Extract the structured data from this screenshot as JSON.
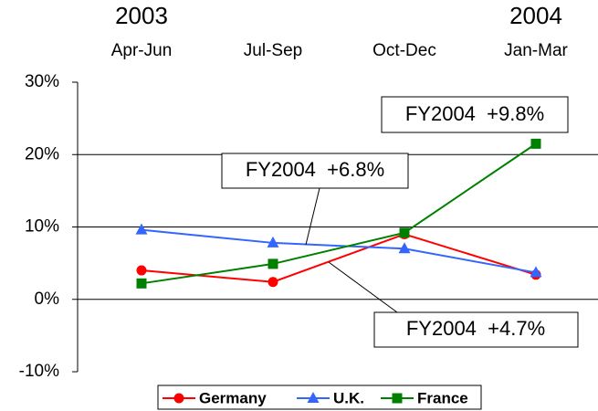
{
  "chart_data": {
    "type": "line",
    "categories": [
      "Apr-Jun",
      "Jul-Sep",
      "Oct-Dec",
      "Jan-Mar"
    ],
    "years": [
      "2003",
      null,
      null,
      "2004"
    ],
    "series": [
      {
        "name": "Germany",
        "color": "#ff0000",
        "marker": "circle",
        "values": [
          4.0,
          2.4,
          9.0,
          3.4
        ]
      },
      {
        "name": "U.K.",
        "color": "#3366ff",
        "marker": "triangle",
        "values": [
          9.6,
          7.8,
          7.0,
          3.7
        ]
      },
      {
        "name": "France",
        "color": "#008000",
        "marker": "square",
        "values": [
          2.2,
          4.9,
          9.2,
          21.5
        ]
      }
    ],
    "ylim": [
      -10,
      30
    ],
    "yticks": [
      {
        "value": -10,
        "label": "-10%"
      },
      {
        "value": 0,
        "label": "0%"
      },
      {
        "value": 10,
        "label": "10%"
      },
      {
        "value": 20,
        "label": "20%"
      },
      {
        "value": 30,
        "label": "30%"
      }
    ],
    "grid": true,
    "legend": "bottom",
    "annotations": [
      {
        "text": "FY2004  +9.8%"
      },
      {
        "text": "FY2004  +6.8%"
      },
      {
        "text": "FY2004  +4.7%"
      }
    ]
  }
}
